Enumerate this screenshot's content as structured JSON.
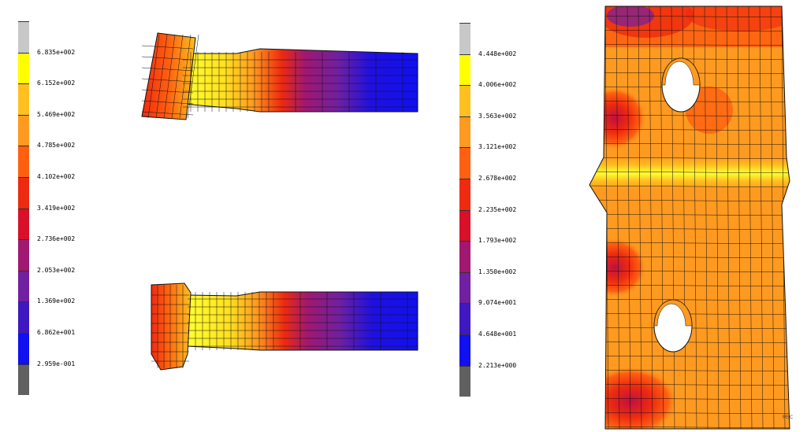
{
  "colors": {
    "top_grey": "#c8c8c8",
    "yellow": "#ffff00",
    "orange_light": "#ffc020",
    "orange": "#ff9a20",
    "orange_red": "#ff6010",
    "red": "#ee2a10",
    "red_dark": "#d8102a",
    "magenta": "#a01870",
    "purple": "#7020a0",
    "blue_purple": "#4018c0",
    "blue": "#1010f0",
    "bottom_grey": "#606060",
    "mesh_line": "#111111"
  },
  "legend_left": {
    "labels": [
      "6.835e+002",
      "6.152e+002",
      "5.469e+002",
      "4.785e+002",
      "4.102e+002",
      "3.419e+002",
      "2.736e+002",
      "2.053e+002",
      "1.369e+002",
      "6.862e+001",
      "2.959e-001"
    ]
  },
  "legend_right": {
    "labels": [
      "4.448e+002",
      "4.006e+002",
      "3.563e+002",
      "3.121e+002",
      "2.678e+002",
      "2.235e+002",
      "1.793e+002",
      "1.350e+002",
      "9.074e+001",
      "4.648e+001",
      "2.213e+000"
    ]
  },
  "corner_mark": "MSC"
}
